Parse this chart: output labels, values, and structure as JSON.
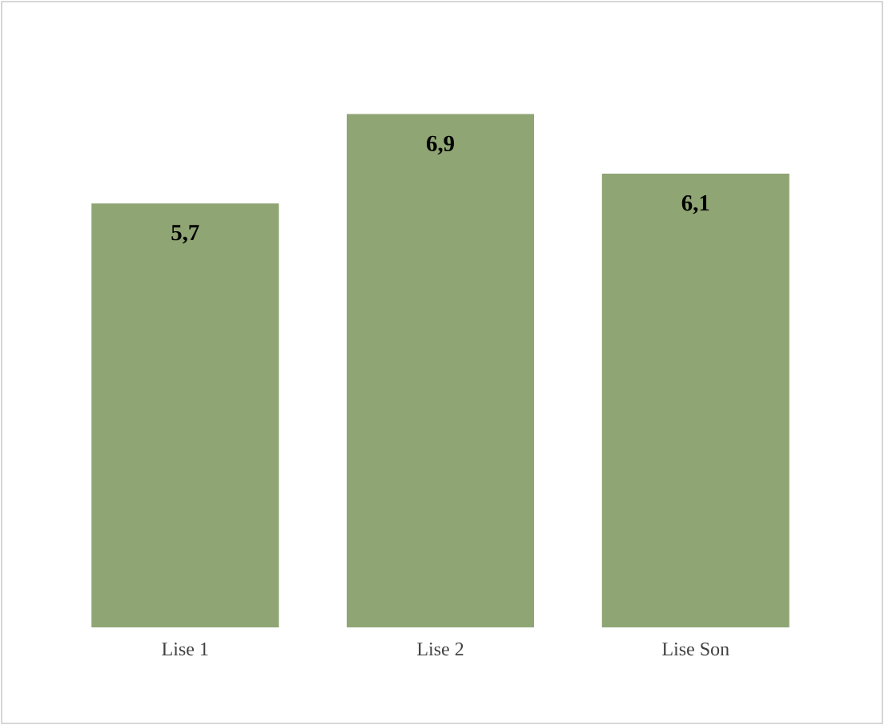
{
  "chart_data": {
    "type": "bar",
    "categories": [
      "Lise 1",
      "Lise 2",
      "Lise Son"
    ],
    "values": [
      5.7,
      6.9,
      6.1
    ],
    "value_labels": [
      "5,7",
      "6,9",
      "6,1"
    ],
    "color": "#8fa573"
  }
}
